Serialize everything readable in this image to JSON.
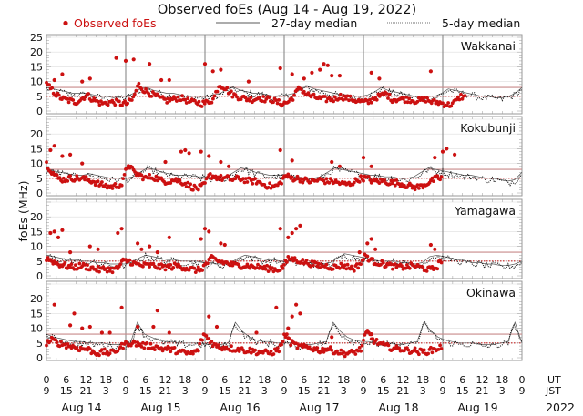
{
  "chart_data": {
    "type": "scatter",
    "title": "Observed foEs (Aug 14 - Aug 19, 2022)",
    "ylabel": "foEs (MHz)",
    "xlabel": "",
    "legend": {
      "placement": "top",
      "entries": [
        {
          "label": "Observed foEs",
          "style": "red-dot",
          "color": "#cc1111"
        },
        {
          "label": "27-day median",
          "style": "solid-line",
          "color": "#222222"
        },
        {
          "label": "5-day median",
          "style": "dotted-line",
          "color": "#222222"
        }
      ]
    },
    "colors": {
      "observed": "#cc1111",
      "median_27day": "#222222",
      "median_5day": "#222222",
      "ref_upper": "#c88a8a",
      "ref_lower": "#c02020",
      "grid": "#dddddd",
      "day_divider": "#888888"
    },
    "ylim": [
      0,
      25
    ],
    "yticks": [
      "0",
      "5",
      "10",
      "15",
      "20",
      "25"
    ],
    "ut_ticks": [
      "0",
      "6",
      "12",
      "18"
    ],
    "jst_ticks": [
      "9",
      "15",
      "21",
      "3"
    ],
    "ut_end": "0",
    "jst_end": "9",
    "ut_label": "UT",
    "jst_label": "JST",
    "year_label": "2022",
    "days": [
      "Aug 14",
      "Aug 15",
      "Aug 16",
      "Aug 17",
      "Aug 18",
      "Aug 19"
    ],
    "grid": true,
    "stations": [
      {
        "name": "Wakkanai",
        "yticks": [
          "0",
          "5",
          "10",
          "15",
          "20",
          "25"
        ],
        "ref_upper": 8,
        "ref_lower": 5,
        "observed_end_day": 5.3,
        "baseline": [
          9,
          7,
          5,
          4,
          3.5,
          3,
          4,
          5.5,
          4,
          3,
          2.5,
          3,
          3,
          2.5,
          2.5,
          4,
          9,
          7,
          6,
          5,
          4,
          3.5,
          4,
          4.5,
          4,
          3,
          3,
          2.5,
          3,
          4,
          9,
          8,
          6,
          5,
          4.5,
          4,
          4,
          4.5,
          4,
          4,
          3,
          2.5,
          3,
          5,
          8,
          6,
          5,
          4.5,
          4,
          4,
          4,
          5,
          4.5,
          4,
          3.5,
          3,
          3,
          4.5,
          5,
          6,
          4,
          4,
          4,
          4,
          3.5,
          3.5,
          4,
          3,
          3,
          2.5,
          2,
          3,
          5,
          4.5
        ],
        "outliers": [
          [
            0.1,
            10.5
          ],
          [
            0.2,
            12.5
          ],
          [
            0.45,
            10
          ],
          [
            0.55,
            11
          ],
          [
            0.88,
            18
          ],
          [
            1.0,
            17
          ],
          [
            1.1,
            17.5
          ],
          [
            1.3,
            16
          ],
          [
            1.45,
            10.5
          ],
          [
            1.55,
            10.5
          ],
          [
            2.0,
            16
          ],
          [
            2.1,
            13.5
          ],
          [
            2.2,
            14
          ],
          [
            2.55,
            10
          ],
          [
            2.95,
            14.5
          ],
          [
            3.1,
            12.5
          ],
          [
            3.25,
            11
          ],
          [
            3.35,
            13
          ],
          [
            3.5,
            16
          ],
          [
            3.55,
            15.5
          ],
          [
            3.45,
            14
          ],
          [
            3.6,
            12
          ],
          [
            3.7,
            12
          ],
          [
            4.1,
            13
          ],
          [
            4.2,
            11
          ],
          [
            4.85,
            13.5
          ]
        ],
        "median27": [
          8,
          7.5,
          7,
          6.5,
          6,
          6,
          6,
          5.5,
          5,
          5,
          4.5,
          5,
          5,
          6,
          7.5,
          8,
          7,
          6.5,
          6,
          6,
          5.5,
          5,
          5,
          5,
          5,
          5.5,
          6,
          7.5,
          8,
          7,
          6.5,
          6,
          6,
          5.5,
          5,
          5,
          5.5,
          6,
          7.5,
          8.5,
          7.5,
          7,
          6.5,
          6,
          5.5,
          5.5,
          5,
          5,
          5.5,
          6.5,
          8,
          7,
          6.5,
          6,
          5.5,
          5,
          5,
          5,
          5,
          6,
          7.5,
          7,
          6.5,
          6,
          5.5,
          5,
          5,
          4.5,
          4.5,
          5,
          6,
          8
        ]
      },
      {
        "name": "Kokubunji",
        "yticks": [
          "0",
          "5",
          "10",
          "15",
          "20"
        ],
        "ref_upper": 8,
        "ref_lower": 5,
        "observed_end_day": 5.0,
        "baseline": [
          10,
          7,
          5,
          4.5,
          5,
          5,
          5,
          4.5,
          4,
          3,
          2.5,
          2,
          2.5,
          3,
          10,
          7,
          6,
          5,
          5.5,
          5,
          4,
          4,
          4.5,
          4,
          3,
          2,
          1.5,
          2.5,
          6,
          5.5,
          5,
          5,
          4.5,
          5,
          4.5,
          4,
          4,
          3,
          2.5,
          2,
          3,
          6,
          5,
          5,
          4.5,
          4,
          4,
          4.5,
          4,
          4,
          3.5,
          3,
          3,
          4,
          5,
          5,
          4,
          4,
          4,
          3.5,
          3.5,
          3,
          2.5,
          2,
          2,
          3,
          4,
          5,
          5
        ],
        "outliers": [
          [
            0.05,
            14.5
          ],
          [
            0.1,
            16
          ],
          [
            0.2,
            12.5
          ],
          [
            0.3,
            13
          ],
          [
            0.45,
            10
          ],
          [
            1.7,
            14
          ],
          [
            1.75,
            14.5
          ],
          [
            1.5,
            10.5
          ],
          [
            1.8,
            13.5
          ],
          [
            1.95,
            14
          ],
          [
            2.05,
            12.5
          ],
          [
            2.2,
            10.5
          ],
          [
            2.3,
            9
          ],
          [
            2.95,
            14.5
          ],
          [
            3.1,
            11
          ],
          [
            3.6,
            10.5
          ],
          [
            3.7,
            9
          ],
          [
            4.0,
            12
          ],
          [
            4.1,
            9
          ],
          [
            4.9,
            12
          ],
          [
            5.0,
            14
          ],
          [
            5.05,
            15
          ],
          [
            5.15,
            13
          ]
        ],
        "median27": [
          8,
          7.5,
          7,
          6.5,
          6,
          6,
          6.5,
          6,
          5.5,
          5,
          5,
          5,
          5.5,
          7,
          8.5,
          8,
          7,
          6.5,
          6,
          6,
          6,
          5.5,
          5.5,
          5,
          5,
          5.5,
          7,
          8.5,
          8,
          7,
          6.5,
          6,
          6,
          6,
          5.5,
          5.5,
          5,
          5,
          5.5,
          7,
          8.5,
          8,
          7.5,
          7,
          6.5,
          6,
          6,
          5.5,
          5.5,
          5,
          5,
          5.5,
          7,
          8.5,
          8,
          7.5,
          7,
          6.5,
          6,
          6,
          5.5,
          5,
          5,
          4.5,
          4,
          4.5,
          7
        ]
      },
      {
        "name": "Yamagawa",
        "yticks": [
          "0",
          "5",
          "10",
          "15",
          "20"
        ],
        "ref_upper": 8,
        "ref_lower": 5,
        "observed_end_day": 5.0,
        "baseline": [
          6,
          5,
          4,
          3.5,
          3,
          3,
          3.5,
          3,
          2.5,
          2,
          2.5,
          2,
          2.5,
          5,
          5,
          4,
          3.5,
          3.5,
          3.5,
          3,
          3,
          3,
          3.5,
          3,
          2.5,
          2,
          2,
          4,
          6,
          5,
          4.5,
          4,
          3.5,
          3.5,
          3.5,
          3,
          3,
          2.5,
          2.5,
          2,
          3,
          6,
          5.5,
          5,
          4.5,
          4,
          3.5,
          3.5,
          3,
          3,
          3.5,
          3,
          2.5,
          4,
          7,
          5,
          4.5,
          4,
          3.5,
          3,
          3,
          3,
          3.5,
          3,
          2.5,
          2,
          3,
          6
        ],
        "outliers": [
          [
            0.05,
            14.5
          ],
          [
            0.1,
            15
          ],
          [
            0.15,
            13
          ],
          [
            0.2,
            15.5
          ],
          [
            0.3,
            8
          ],
          [
            0.55,
            10
          ],
          [
            0.65,
            9
          ],
          [
            0.9,
            14.5
          ],
          [
            0.95,
            16
          ],
          [
            1.15,
            11
          ],
          [
            1.2,
            9
          ],
          [
            1.3,
            10
          ],
          [
            1.4,
            8
          ],
          [
            1.55,
            13
          ],
          [
            2.0,
            16
          ],
          [
            2.05,
            15
          ],
          [
            1.95,
            12.5
          ],
          [
            2.2,
            11
          ],
          [
            2.25,
            10.5
          ],
          [
            2.95,
            16
          ],
          [
            3.1,
            14.5
          ],
          [
            3.15,
            16
          ],
          [
            3.2,
            17
          ],
          [
            3.05,
            13
          ],
          [
            4.1,
            12.5
          ],
          [
            4.05,
            11
          ],
          [
            4.15,
            9
          ],
          [
            3.95,
            8
          ],
          [
            4.85,
            10.5
          ],
          [
            4.9,
            9
          ]
        ],
        "median27": [
          7,
          6.5,
          6,
          5.5,
          5.5,
          5,
          5,
          4.5,
          4.5,
          4,
          4,
          4,
          4.5,
          6,
          7,
          6.5,
          6,
          5.5,
          5.5,
          5,
          5,
          5,
          4.5,
          4.5,
          4,
          4,
          4.5,
          6,
          7,
          6.5,
          6,
          5.5,
          5.5,
          5,
          5,
          5,
          4.5,
          4.5,
          4,
          4,
          4.5,
          6,
          7.5,
          7,
          6.5,
          6,
          5.5,
          5,
          5,
          5,
          4.5,
          4.5,
          4,
          4.5,
          6.5,
          7,
          6.5,
          6,
          5.5,
          5,
          4.5,
          4.5,
          4,
          4,
          3.5,
          3.5,
          4,
          5
        ]
      },
      {
        "name": "Okinawa",
        "yticks": [
          "0",
          "5",
          "10",
          "15",
          "20"
        ],
        "ref_upper": 8,
        "ref_lower": 5,
        "observed_end_day": 5.0,
        "baseline": [
          5,
          6,
          5,
          4.5,
          4,
          3.5,
          3,
          3,
          2,
          1.5,
          2,
          1.5,
          2.5,
          4,
          5,
          5,
          4.5,
          4,
          4,
          3.5,
          3,
          3,
          2.5,
          2,
          1.5,
          1.5,
          2.5,
          8,
          6,
          4,
          3.5,
          3.5,
          3,
          3,
          2.5,
          2.5,
          2,
          2,
          1.5,
          2,
          3,
          8,
          5,
          4,
          3.5,
          3.5,
          3,
          2.5,
          3,
          2.5,
          2,
          1.5,
          1.5,
          2,
          3,
          9,
          6,
          5,
          4,
          3.5,
          3,
          3,
          2.5,
          2.5,
          2,
          2,
          2.5,
          3,
          4
        ],
        "outliers": [
          [
            0.1,
            18
          ],
          [
            0.3,
            11
          ],
          [
            0.35,
            15
          ],
          [
            0.45,
            10
          ],
          [
            0.55,
            10.5
          ],
          [
            0.7,
            8.5
          ],
          [
            0.8,
            8.5
          ],
          [
            0.95,
            17
          ],
          [
            1.15,
            10.5
          ],
          [
            1.35,
            10.5
          ],
          [
            1.4,
            16
          ],
          [
            1.55,
            8.5
          ],
          [
            2.05,
            14
          ],
          [
            2.15,
            10.5
          ],
          [
            2.65,
            8.5
          ],
          [
            2.9,
            17
          ],
          [
            3.1,
            14
          ],
          [
            3.15,
            18
          ],
          [
            3.05,
            10
          ],
          [
            3.2,
            15
          ],
          [
            3.6,
            7
          ],
          [
            3.55,
            3
          ],
          [
            4.05,
            9
          ],
          [
            4.1,
            8
          ]
        ],
        "median27": [
          8,
          7,
          6.5,
          6,
          5.5,
          5.5,
          5,
          5,
          5,
          4.5,
          4.5,
          4.5,
          5,
          12,
          8,
          7,
          6,
          5.5,
          5.5,
          5,
          5,
          5,
          5,
          4.5,
          4.5,
          4.5,
          5,
          12,
          9,
          7,
          6,
          5.5,
          5.5,
          5,
          5,
          5,
          4.5,
          4.5,
          4.5,
          5,
          5.5,
          12,
          9,
          7,
          6,
          5.5,
          5.5,
          5,
          5,
          5,
          4.5,
          4.5,
          5,
          5.5,
          12,
          9,
          7,
          6,
          5.5,
          5,
          5,
          5,
          4.5,
          4.5,
          4.5,
          5,
          5.5,
          12,
          5
        ]
      }
    ]
  }
}
